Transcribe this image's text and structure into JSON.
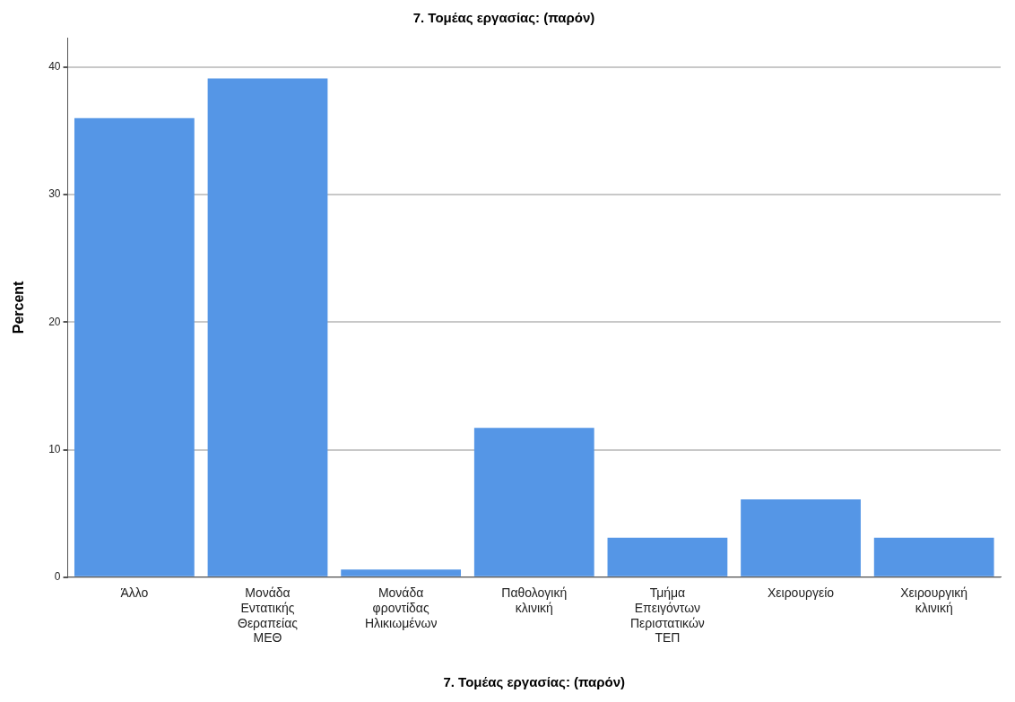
{
  "chart_data": {
    "type": "bar",
    "title": "7. Τομέας εργασίας: (παρόν)",
    "xlabel": "7. Τομέας εργασίας: (παρόν)",
    "ylabel": "Percent",
    "categories": [
      "Άλλο",
      "Μονάδα Εντατικής Θεραπείας ΜΕΘ",
      "Μονάδα φροντίδας Ηλικιωμένων",
      "Παθολογική κλινική",
      "Τμήμα Επειγόντων Περιστατικών ΤΕΠ",
      "Χειρουργείο",
      "Χειρουργική κλινική"
    ],
    "values": [
      36.0,
      39.1,
      0.6,
      11.7,
      3.1,
      6.1,
      3.1
    ],
    "color": "#5596e6",
    "ylim": [
      0,
      42.3
    ],
    "yticks": [
      0,
      10,
      20,
      30,
      40
    ],
    "grid": "y",
    "legend": false
  }
}
